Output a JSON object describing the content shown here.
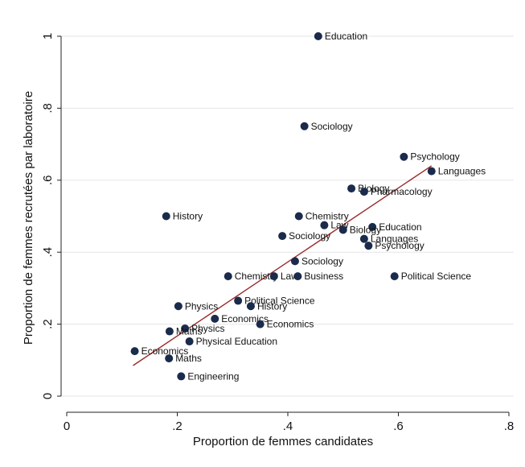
{
  "chart_data": {
    "type": "scatter",
    "xlabel": "Proportion de femmes candidates",
    "ylabel": "Proportion de femmes recrutées par laboratoire",
    "xlim": [
      0,
      0.8
    ],
    "ylim": [
      0,
      1
    ],
    "x_ticks": [
      {
        "value": 0,
        "label": "0"
      },
      {
        "value": 0.2,
        "label": ".2"
      },
      {
        "value": 0.4,
        "label": ".4"
      },
      {
        "value": 0.6,
        "label": ".6"
      },
      {
        "value": 0.8,
        "label": ".8"
      }
    ],
    "y_ticks": [
      {
        "value": 0,
        "label": "0"
      },
      {
        "value": 0.2,
        "label": ".2"
      },
      {
        "value": 0.4,
        "label": ".4"
      },
      {
        "value": 0.6,
        "label": ".6"
      },
      {
        "value": 0.8,
        "label": ".8"
      },
      {
        "value": 1,
        "label": "1"
      }
    ],
    "grid": "horizontal",
    "marker_color": "#1a2b4c",
    "fit_line_color": "#9b2a2a",
    "fit_line": {
      "x": [
        0.12,
        0.66
      ],
      "y": [
        0.085,
        0.64
      ]
    },
    "points": [
      {
        "label": "Education",
        "x": 0.455,
        "y": 1.0
      },
      {
        "label": "Sociology",
        "x": 0.43,
        "y": 0.75
      },
      {
        "label": "Psychology",
        "x": 0.61,
        "y": 0.665
      },
      {
        "label": "Languages",
        "x": 0.66,
        "y": 0.625
      },
      {
        "label": "Biology",
        "x": 0.515,
        "y": 0.577
      },
      {
        "label": "Pharmacology",
        "x": 0.538,
        "y": 0.568
      },
      {
        "label": "History",
        "x": 0.18,
        "y": 0.5
      },
      {
        "label": "Chemistry",
        "x": 0.42,
        "y": 0.5
      },
      {
        "label": "Law",
        "x": 0.466,
        "y": 0.475
      },
      {
        "label": "Education",
        "x": 0.553,
        "y": 0.47
      },
      {
        "label": "Biology",
        "x": 0.5,
        "y": 0.462
      },
      {
        "label": "Sociology",
        "x": 0.39,
        "y": 0.445
      },
      {
        "label": "Languages",
        "x": 0.538,
        "y": 0.437
      },
      {
        "label": "Psychology",
        "x": 0.546,
        "y": 0.418
      },
      {
        "label": "Sociology",
        "x": 0.413,
        "y": 0.375
      },
      {
        "label": "Chemistry",
        "x": 0.292,
        "y": 0.333
      },
      {
        "label": "Law",
        "x": 0.375,
        "y": 0.333
      },
      {
        "label": "Business",
        "x": 0.418,
        "y": 0.333
      },
      {
        "label": "Political Science",
        "x": 0.593,
        "y": 0.333
      },
      {
        "label": "Political Science",
        "x": 0.31,
        "y": 0.265
      },
      {
        "label": "History",
        "x": 0.333,
        "y": 0.25
      },
      {
        "label": "Physics",
        "x": 0.202,
        "y": 0.25
      },
      {
        "label": "Economics",
        "x": 0.268,
        "y": 0.215
      },
      {
        "label": "Economics",
        "x": 0.35,
        "y": 0.2
      },
      {
        "label": "Physics",
        "x": 0.214,
        "y": 0.188
      },
      {
        "label": "Maths",
        "x": 0.186,
        "y": 0.18
      },
      {
        "label": "Physical Education",
        "x": 0.222,
        "y": 0.152
      },
      {
        "label": "Economics",
        "x": 0.123,
        "y": 0.125
      },
      {
        "label": "Maths",
        "x": 0.185,
        "y": 0.105
      },
      {
        "label": "Engineering",
        "x": 0.207,
        "y": 0.055
      }
    ]
  }
}
